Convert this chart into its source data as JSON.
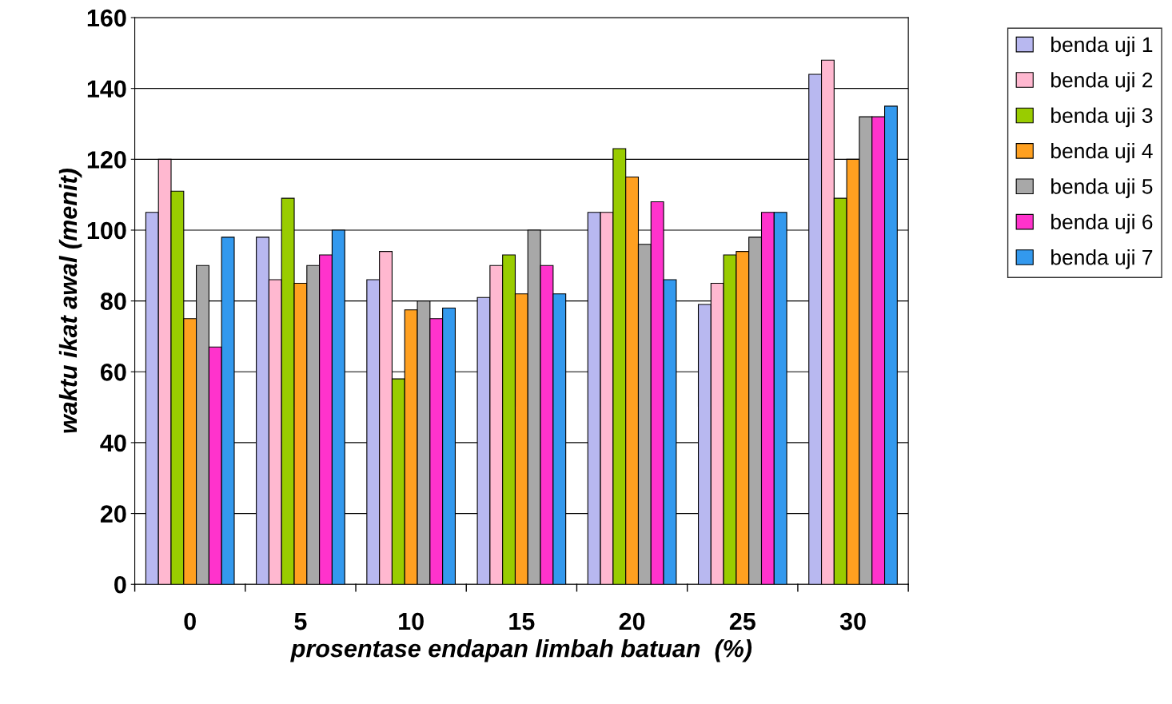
{
  "chart_data": {
    "type": "bar",
    "xlabel": "prosentase endapan limbah batuan  (%)",
    "ylabel": "waktu ikat awal (menit)",
    "categories": [
      "0",
      "5",
      "10",
      "15",
      "20",
      "25",
      "30"
    ],
    "series": [
      {
        "name": "benda uji 1",
        "color": "#b8b8f0",
        "values": [
          105,
          98,
          86,
          81,
          105,
          79,
          144
        ]
      },
      {
        "name": "benda uji 2",
        "color": "#ffb8d0",
        "values": [
          120,
          86,
          94,
          90,
          105,
          85,
          148
        ]
      },
      {
        "name": "benda uji 3",
        "color": "#99cc00",
        "values": [
          111,
          109,
          58,
          93,
          123,
          93,
          109
        ]
      },
      {
        "name": "benda uji 4",
        "color": "#ffa020",
        "values": [
          75,
          85,
          77.5,
          82,
          115,
          94,
          120
        ]
      },
      {
        "name": "benda uji 5",
        "color": "#a8a8a8",
        "values": [
          90,
          90,
          80,
          100,
          96,
          98,
          132
        ]
      },
      {
        "name": "benda uji 6",
        "color": "#ff33cc",
        "values": [
          67,
          93,
          75,
          90,
          108,
          105,
          132
        ]
      },
      {
        "name": "benda uji 7",
        "color": "#3399ee",
        "values": [
          98,
          100,
          78,
          82,
          86,
          105,
          135
        ]
      }
    ],
    "ylim": [
      0,
      160
    ],
    "yticks": [
      0,
      20,
      40,
      60,
      80,
      100,
      120,
      140,
      160
    ],
    "grid": "y",
    "legend": "top right"
  }
}
